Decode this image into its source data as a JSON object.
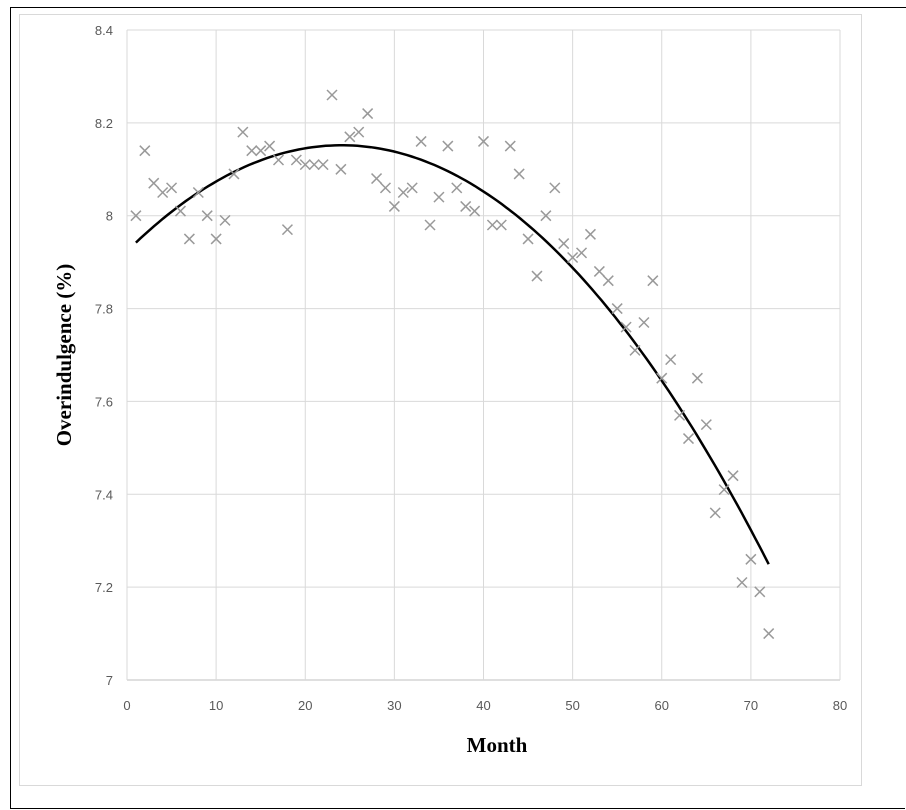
{
  "chart_data": {
    "type": "scatter",
    "title": "",
    "xlabel": "Month",
    "ylabel": "Overindulgence (%)",
    "xlim": [
      0,
      80
    ],
    "ylim": [
      7,
      8.4
    ],
    "x_ticks": [
      0,
      10,
      20,
      30,
      40,
      50,
      60,
      70,
      80
    ],
    "y_ticks": [
      "7",
      "7.2",
      "7.4",
      "7.6",
      "7.8",
      "8",
      "8.2",
      "8.4"
    ],
    "grid": "on",
    "legend": "none",
    "marker": "x",
    "marker_color": "#999999",
    "trendline": {
      "type": "polynomial",
      "color": "#000000",
      "x_range": [
        1,
        72
      ]
    },
    "series": [
      {
        "x": [
          1,
          2,
          3,
          4,
          5,
          6,
          7,
          8,
          9,
          10,
          11,
          12,
          13,
          14,
          15,
          16,
          17,
          18,
          19,
          20,
          21,
          22,
          23,
          24,
          25,
          26,
          27,
          28,
          29,
          30,
          31,
          32,
          33,
          34,
          35,
          36,
          37,
          38,
          39,
          40,
          41,
          42,
          43,
          44,
          45,
          46,
          47,
          48,
          49,
          50,
          51,
          52,
          53,
          54,
          55,
          56,
          57,
          58,
          59,
          60,
          61,
          62,
          63,
          64,
          65,
          66,
          67,
          68,
          69,
          70,
          71,
          72
        ],
        "y": [
          8.0,
          8.14,
          8.07,
          8.05,
          8.06,
          8.01,
          7.95,
          8.05,
          8.0,
          7.95,
          7.99,
          8.09,
          8.18,
          8.14,
          8.14,
          8.15,
          8.12,
          7.97,
          8.12,
          8.11,
          8.11,
          8.11,
          8.26,
          8.1,
          8.17,
          8.18,
          8.22,
          8.08,
          8.06,
          8.02,
          8.05,
          8.06,
          8.16,
          7.98,
          8.04,
          8.15,
          8.06,
          8.02,
          8.01,
          8.16,
          7.98,
          7.98,
          8.15,
          8.09,
          7.95,
          7.87,
          8.0,
          8.06,
          7.94,
          7.91,
          7.92,
          7.96,
          7.88,
          7.86,
          7.8,
          7.76,
          7.71,
          7.77,
          7.86,
          7.65,
          7.69,
          7.57,
          7.52,
          7.65,
          7.55,
          7.36,
          7.41,
          7.44,
          7.21,
          7.26,
          7.19,
          7.1
        ]
      }
    ]
  }
}
